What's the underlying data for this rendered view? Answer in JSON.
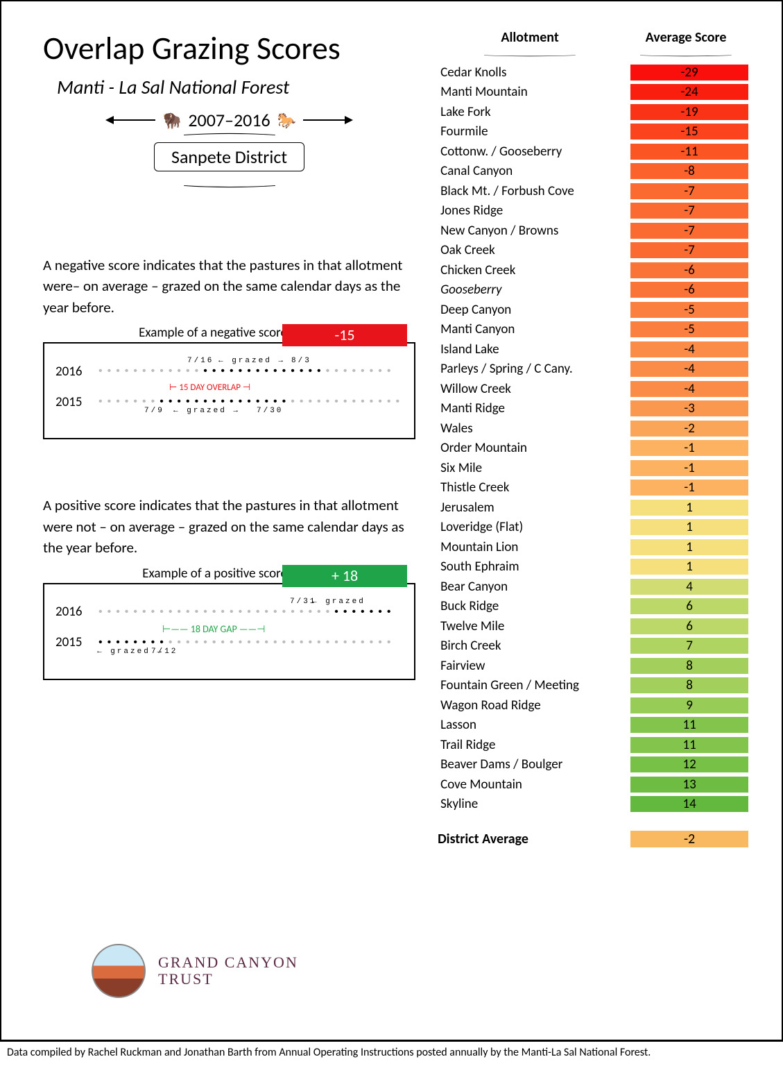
{
  "title": "Overlap Grazing Scores",
  "subtitle": "Manti - La Sal National Forest",
  "date_range": "2007–2016",
  "district": "Sanpete District",
  "desc_negative": "A negative score indicates that the pastures in that allotment were– on average – grazed on the same calendar days as the year before.",
  "example_neg_label": "Example of a negative score:",
  "example_neg_score": "-15",
  "example_neg_colors": {
    "badge": "#e8141c"
  },
  "overlap_text": "15 DAY OVERLAP",
  "neg_year_a": "2016",
  "neg_year_b": "2015",
  "neg_dates": {
    "a_start": "7/16",
    "a_end": "8/3",
    "b_start": "7/9",
    "b_end": "7/30",
    "word": "grazed"
  },
  "desc_positive": "A positive score indicates that the pastures in that allotment were not – on average – grazed on the same calendar days as the year before.",
  "example_pos_label": "Example of a positive score:",
  "example_pos_score": "+ 18",
  "example_pos_colors": {
    "badge": "#1fa44a"
  },
  "gap_text": "18 DAY GAP",
  "pos_year_a": "2016",
  "pos_year_b": "2015",
  "pos_dates": {
    "a_start": "7/31",
    "b_end": "7/12",
    "word": "grazed"
  },
  "logo": {
    "line1": "GRAND CANYON",
    "line2": "TRUST"
  },
  "headers": {
    "allotment": "Allotment",
    "avg": "Average Score"
  },
  "rows": [
    {
      "name": "Cedar Knolls",
      "score": -29,
      "color": "#fa0f0c"
    },
    {
      "name": "Manti Mountain",
      "score": -24,
      "color": "#fa1e0f"
    },
    {
      "name": "Lake Fork",
      "score": -19,
      "color": "#fb3316"
    },
    {
      "name": "Fourmile",
      "score": -15,
      "color": "#fb441d"
    },
    {
      "name": "Cottonw. / Gooseberry",
      "score": -11,
      "color": "#fb5524"
    },
    {
      "name": "Canal Canyon",
      "score": -8,
      "color": "#fb622c"
    },
    {
      "name": "Black Mt. / Forbush Cove",
      "score": -7,
      "color": "#fb6a31"
    },
    {
      "name": "Jones Ridge",
      "score": -7,
      "color": "#fb6a31"
    },
    {
      "name": "New Canyon / Browns",
      "score": -7,
      "color": "#fb6a31"
    },
    {
      "name": "Oak Creek",
      "score": -7,
      "color": "#fb6a31"
    },
    {
      "name": "Chicken Creek",
      "score": -6,
      "color": "#fb7437"
    },
    {
      "name": "Gooseberry",
      "score": -6,
      "color": "#fb7437",
      "italic": true
    },
    {
      "name": "Deep Canyon",
      "score": -5,
      "color": "#fb803f"
    },
    {
      "name": "Manti Canyon",
      "score": -5,
      "color": "#fb803f"
    },
    {
      "name": "Island Lake",
      "score": -4,
      "color": "#fb8c47"
    },
    {
      "name": "Parleys / Spring / C Cany.",
      "score": -4,
      "color": "#fb8c47"
    },
    {
      "name": "Willow Creek",
      "score": -4,
      "color": "#fb8c47"
    },
    {
      "name": "Manti Ridge",
      "score": -3,
      "color": "#fb9850"
    },
    {
      "name": "Wales",
      "score": -2,
      "color": "#fba558"
    },
    {
      "name": "Order Mountain",
      "score": -1,
      "color": "#fcb261"
    },
    {
      "name": "Six Mile",
      "score": -1,
      "color": "#fcb261"
    },
    {
      "name": "Thistle Creek",
      "score": -1,
      "color": "#fcb261"
    },
    {
      "name": "Jerusalem",
      "score": 1,
      "color": "#f6e07e"
    },
    {
      "name": "Loveridge (Flat)",
      "score": 1,
      "color": "#f6e07e"
    },
    {
      "name": "Mountain Lion",
      "score": 1,
      "color": "#f6e07e"
    },
    {
      "name": "South Ephraim",
      "score": 1,
      "color": "#f6e07e"
    },
    {
      "name": "Bear Canyon",
      "score": 4,
      "color": "#d1dd72"
    },
    {
      "name": "Buck Ridge",
      "score": 6,
      "color": "#bcd868"
    },
    {
      "name": "Twelve Mile",
      "score": 6,
      "color": "#bcd868"
    },
    {
      "name": "Birch Creek",
      "score": 7,
      "color": "#b0d462"
    },
    {
      "name": "Fairview",
      "score": 8,
      "color": "#a3d05c"
    },
    {
      "name": "Fountain Green / Meeting",
      "score": 8,
      "color": "#a3d05c"
    },
    {
      "name": "Wagon Road Ridge",
      "score": 9,
      "color": "#97cc56"
    },
    {
      "name": "Lasson",
      "score": 11,
      "color": "#83c54c"
    },
    {
      "name": "Trail Ridge",
      "score": 11,
      "color": "#83c54c"
    },
    {
      "name": "Beaver Dams / Boulger",
      "score": 12,
      "color": "#78c147"
    },
    {
      "name": "Cove Mountain",
      "score": 13,
      "color": "#6ebd42"
    },
    {
      "name": "Skyline",
      "score": 14,
      "color": "#63b93d"
    }
  ],
  "district_avg": {
    "label": "District Average",
    "score": -2,
    "color": "#f8b960"
  },
  "footer": "Data compiled by Rachel Ruckman and Jonathan Barth from Annual Operating Instructions posted annually by the Manti-La Sal National Forest."
}
